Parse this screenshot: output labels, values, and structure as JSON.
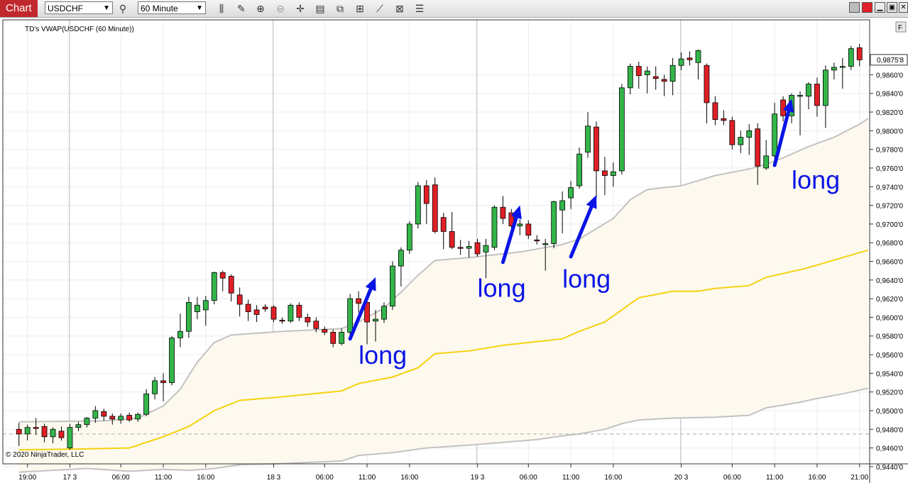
{
  "toolbar": {
    "tab_label": "Chart",
    "instrument": "USDCHF",
    "timeframe": "60 Minute"
  },
  "indicator_label": "TD's VWAP(USDCHF (60 Minute))",
  "copyright": "© 2020 NinjaTrader, LLC",
  "price_badge": "0,9875'8",
  "colors": {
    "up_candle": "#33b54a",
    "down_candle": "#e01f26",
    "vwap": "#f5d20e",
    "bands": "#c2c2c2",
    "band_fill": "#fdf9ef",
    "arrows": "#0a14e6"
  },
  "chart_data": {
    "type": "candlestick",
    "y_axis": {
      "min": 0.9435,
      "max": 0.9885,
      "ticks": [
        "0,9860'0",
        "0,9840'0",
        "0,9820'0",
        "0,9800'0",
        "0,9780'0",
        "0,9760'0",
        "0,9740'0",
        "0,9720'0",
        "0,9700'0",
        "0,9680'0",
        "0,9660'0",
        "0,9640'0",
        "0,9620'0",
        "0,9600'0",
        "0,9580'0",
        "0,9560'0",
        "0,9540'0",
        "0,9520'0",
        "0,9500'0",
        "0,9480'0",
        "0,9460'0",
        "0,9440'0"
      ],
      "tick_values": [
        0.986,
        0.984,
        0.982,
        0.98,
        0.978,
        0.976,
        0.974,
        0.972,
        0.97,
        0.968,
        0.966,
        0.964,
        0.962,
        0.96,
        0.958,
        0.956,
        0.954,
        0.952,
        0.95,
        0.948,
        0.946,
        0.944
      ]
    },
    "x_axis": {
      "ticks": [
        {
          "label": "19:00",
          "i": 1
        },
        {
          "label": "17 3",
          "i": 6
        },
        {
          "label": "06:00",
          "i": 12
        },
        {
          "label": "11:00",
          "i": 17
        },
        {
          "label": "16:00",
          "i": 22
        },
        {
          "label": "18 3",
          "i": 30
        },
        {
          "label": "06:00",
          "i": 36
        },
        {
          "label": "11:00",
          "i": 41
        },
        {
          "label": "16:00",
          "i": 46
        },
        {
          "label": "19 3",
          "i": 54
        },
        {
          "label": "06:00",
          "i": 60
        },
        {
          "label": "11:00",
          "i": 65
        },
        {
          "label": "16:00",
          "i": 70
        },
        {
          "label": "20 3",
          "i": 78
        },
        {
          "label": "06:00",
          "i": 84
        },
        {
          "label": "11:00",
          "i": 89
        },
        {
          "label": "16:00",
          "i": 94
        },
        {
          "label": "21:00",
          "i": 99
        }
      ],
      "day_separators": [
        6,
        30,
        54,
        78
      ]
    },
    "candles": [
      {
        "o": 0.948,
        "h": 0.9487,
        "l": 0.9462,
        "c": 0.9475
      },
      {
        "o": 0.9475,
        "h": 0.9485,
        "l": 0.9468,
        "c": 0.9482
      },
      {
        "o": 0.9482,
        "h": 0.9492,
        "l": 0.9474,
        "c": 0.9481
      },
      {
        "o": 0.9483,
        "h": 0.9486,
        "l": 0.9466,
        "c": 0.9472
      },
      {
        "o": 0.9472,
        "h": 0.9482,
        "l": 0.9465,
        "c": 0.948
      },
      {
        "o": 0.9478,
        "h": 0.9483,
        "l": 0.9468,
        "c": 0.9471
      },
      {
        "o": 0.946,
        "h": 0.9486,
        "l": 0.9458,
        "c": 0.9482
      },
      {
        "o": 0.9482,
        "h": 0.9488,
        "l": 0.9478,
        "c": 0.9485
      },
      {
        "o": 0.9485,
        "h": 0.9493,
        "l": 0.9482,
        "c": 0.9492
      },
      {
        "o": 0.9492,
        "h": 0.9505,
        "l": 0.9487,
        "c": 0.95
      },
      {
        "o": 0.9499,
        "h": 0.9502,
        "l": 0.9489,
        "c": 0.9494
      },
      {
        "o": 0.9494,
        "h": 0.9497,
        "l": 0.9485,
        "c": 0.9491
      },
      {
        "o": 0.949,
        "h": 0.9497,
        "l": 0.9486,
        "c": 0.9494
      },
      {
        "o": 0.9495,
        "h": 0.9498,
        "l": 0.9488,
        "c": 0.949
      },
      {
        "o": 0.9491,
        "h": 0.9498,
        "l": 0.9488,
        "c": 0.9496
      },
      {
        "o": 0.9496,
        "h": 0.9523,
        "l": 0.9494,
        "c": 0.9518
      },
      {
        "o": 0.9518,
        "h": 0.9536,
        "l": 0.9512,
        "c": 0.9532
      },
      {
        "o": 0.9532,
        "h": 0.954,
        "l": 0.951,
        "c": 0.953
      },
      {
        "o": 0.953,
        "h": 0.958,
        "l": 0.9527,
        "c": 0.9578
      },
      {
        "o": 0.9578,
        "h": 0.9604,
        "l": 0.9568,
        "c": 0.9585
      },
      {
        "o": 0.9585,
        "h": 0.9622,
        "l": 0.9578,
        "c": 0.9616
      },
      {
        "o": 0.9606,
        "h": 0.9622,
        "l": 0.9598,
        "c": 0.9613
      },
      {
        "o": 0.9608,
        "h": 0.9623,
        "l": 0.9591,
        "c": 0.9618
      },
      {
        "o": 0.9618,
        "h": 0.9649,
        "l": 0.9614,
        "c": 0.9648
      },
      {
        "o": 0.9648,
        "h": 0.965,
        "l": 0.9628,
        "c": 0.9642
      },
      {
        "o": 0.9644,
        "h": 0.9646,
        "l": 0.9617,
        "c": 0.9626
      },
      {
        "o": 0.9624,
        "h": 0.9632,
        "l": 0.9601,
        "c": 0.9614
      },
      {
        "o": 0.9614,
        "h": 0.9619,
        "l": 0.9596,
        "c": 0.9606
      },
      {
        "o": 0.9608,
        "h": 0.9613,
        "l": 0.9595,
        "c": 0.9603
      },
      {
        "o": 0.9611,
        "h": 0.9614,
        "l": 0.9606,
        "c": 0.9609
      },
      {
        "o": 0.9611,
        "h": 0.9613,
        "l": 0.9595,
        "c": 0.9598
      },
      {
        "o": 0.9597,
        "h": 0.96,
        "l": 0.9593,
        "c": 0.9596
      },
      {
        "o": 0.9596,
        "h": 0.9615,
        "l": 0.9594,
        "c": 0.9613
      },
      {
        "o": 0.9613,
        "h": 0.9616,
        "l": 0.9596,
        "c": 0.96
      },
      {
        "o": 0.96,
        "h": 0.9604,
        "l": 0.959,
        "c": 0.9595
      },
      {
        "o": 0.9596,
        "h": 0.96,
        "l": 0.9584,
        "c": 0.9588
      },
      {
        "o": 0.9587,
        "h": 0.959,
        "l": 0.9581,
        "c": 0.9584
      },
      {
        "o": 0.9584,
        "h": 0.9587,
        "l": 0.9568,
        "c": 0.9572
      },
      {
        "o": 0.9572,
        "h": 0.9588,
        "l": 0.957,
        "c": 0.9584
      },
      {
        "o": 0.9584,
        "h": 0.9625,
        "l": 0.958,
        "c": 0.962
      },
      {
        "o": 0.962,
        "h": 0.9628,
        "l": 0.9605,
        "c": 0.9615
      },
      {
        "o": 0.9616,
        "h": 0.962,
        "l": 0.9571,
        "c": 0.9595
      },
      {
        "o": 0.9596,
        "h": 0.9608,
        "l": 0.9574,
        "c": 0.9598
      },
      {
        "o": 0.9598,
        "h": 0.9616,
        "l": 0.9594,
        "c": 0.9612
      },
      {
        "o": 0.9612,
        "h": 0.966,
        "l": 0.9608,
        "c": 0.9655
      },
      {
        "o": 0.9655,
        "h": 0.9675,
        "l": 0.9633,
        "c": 0.9672
      },
      {
        "o": 0.9672,
        "h": 0.9703,
        "l": 0.9668,
        "c": 0.97
      },
      {
        "o": 0.97,
        "h": 0.9745,
        "l": 0.9695,
        "c": 0.9741
      },
      {
        "o": 0.9741,
        "h": 0.9747,
        "l": 0.97,
        "c": 0.9722
      },
      {
        "o": 0.9742,
        "h": 0.975,
        "l": 0.969,
        "c": 0.9692
      },
      {
        "o": 0.9707,
        "h": 0.9712,
        "l": 0.9673,
        "c": 0.9692
      },
      {
        "o": 0.9692,
        "h": 0.9713,
        "l": 0.9673,
        "c": 0.9675
      },
      {
        "o": 0.9675,
        "h": 0.9683,
        "l": 0.9667,
        "c": 0.9674
      },
      {
        "o": 0.9674,
        "h": 0.9682,
        "l": 0.9664,
        "c": 0.9676
      },
      {
        "o": 0.968,
        "h": 0.9684,
        "l": 0.9665,
        "c": 0.9668
      },
      {
        "o": 0.967,
        "h": 0.9684,
        "l": 0.9642,
        "c": 0.9677
      },
      {
        "o": 0.9675,
        "h": 0.972,
        "l": 0.9672,
        "c": 0.9718
      },
      {
        "o": 0.9718,
        "h": 0.973,
        "l": 0.97,
        "c": 0.9706
      },
      {
        "o": 0.9712,
        "h": 0.9716,
        "l": 0.9694,
        "c": 0.9698
      },
      {
        "o": 0.9698,
        "h": 0.9705,
        "l": 0.9688,
        "c": 0.97
      },
      {
        "o": 0.97,
        "h": 0.9704,
        "l": 0.9684,
        "c": 0.9688
      },
      {
        "o": 0.9683,
        "h": 0.9688,
        "l": 0.9678,
        "c": 0.9682
      },
      {
        "o": 0.9679,
        "h": 0.9684,
        "l": 0.965,
        "c": 0.9679
      },
      {
        "o": 0.9679,
        "h": 0.9725,
        "l": 0.9674,
        "c": 0.9724
      },
      {
        "o": 0.9715,
        "h": 0.9735,
        "l": 0.969,
        "c": 0.9725
      },
      {
        "o": 0.9728,
        "h": 0.9746,
        "l": 0.9716,
        "c": 0.9739
      },
      {
        "o": 0.9741,
        "h": 0.9782,
        "l": 0.9738,
        "c": 0.9775
      },
      {
        "o": 0.9777,
        "h": 0.982,
        "l": 0.9771,
        "c": 0.9805
      },
      {
        "o": 0.9804,
        "h": 0.981,
        "l": 0.9728,
        "c": 0.9757
      },
      {
        "o": 0.9757,
        "h": 0.9772,
        "l": 0.9731,
        "c": 0.9752
      },
      {
        "o": 0.9752,
        "h": 0.9766,
        "l": 0.974,
        "c": 0.9756
      },
      {
        "o": 0.9757,
        "h": 0.985,
        "l": 0.9753,
        "c": 0.9846
      },
      {
        "o": 0.9846,
        "h": 0.9872,
        "l": 0.9839,
        "c": 0.9869
      },
      {
        "o": 0.9869,
        "h": 0.9874,
        "l": 0.9845,
        "c": 0.9859
      },
      {
        "o": 0.986,
        "h": 0.9869,
        "l": 0.984,
        "c": 0.9864
      },
      {
        "o": 0.9858,
        "h": 0.9869,
        "l": 0.9844,
        "c": 0.9856
      },
      {
        "o": 0.9855,
        "h": 0.986,
        "l": 0.9837,
        "c": 0.9853
      },
      {
        "o": 0.9853,
        "h": 0.9878,
        "l": 0.9838,
        "c": 0.987
      },
      {
        "o": 0.987,
        "h": 0.9884,
        "l": 0.9865,
        "c": 0.9877
      },
      {
        "o": 0.9878,
        "h": 0.9885,
        "l": 0.987,
        "c": 0.9876
      },
      {
        "o": 0.9873,
        "h": 0.9887,
        "l": 0.9855,
        "c": 0.9886
      },
      {
        "o": 0.987,
        "h": 0.9872,
        "l": 0.9808,
        "c": 0.983
      },
      {
        "o": 0.983,
        "h": 0.9837,
        "l": 0.9806,
        "c": 0.9812
      },
      {
        "o": 0.9813,
        "h": 0.9822,
        "l": 0.9806,
        "c": 0.9811
      },
      {
        "o": 0.9811,
        "h": 0.9815,
        "l": 0.978,
        "c": 0.9785
      },
      {
        "o": 0.9785,
        "h": 0.98,
        "l": 0.9776,
        "c": 0.9793
      },
      {
        "o": 0.9793,
        "h": 0.9807,
        "l": 0.9774,
        "c": 0.98
      },
      {
        "o": 0.9802,
        "h": 0.9808,
        "l": 0.9742,
        "c": 0.9762
      },
      {
        "o": 0.976,
        "h": 0.979,
        "l": 0.9758,
        "c": 0.9773
      },
      {
        "o": 0.9773,
        "h": 0.983,
        "l": 0.9767,
        "c": 0.9818
      },
      {
        "o": 0.9833,
        "h": 0.9837,
        "l": 0.981,
        "c": 0.9816
      },
      {
        "o": 0.9816,
        "h": 0.984,
        "l": 0.9808,
        "c": 0.9838
      },
      {
        "o": 0.9838,
        "h": 0.9842,
        "l": 0.9795,
        "c": 0.9838
      },
      {
        "o": 0.9837,
        "h": 0.9852,
        "l": 0.9823,
        "c": 0.985
      },
      {
        "o": 0.985,
        "h": 0.9857,
        "l": 0.9815,
        "c": 0.9827
      },
      {
        "o": 0.9827,
        "h": 0.987,
        "l": 0.9803,
        "c": 0.9865
      },
      {
        "o": 0.9865,
        "h": 0.9873,
        "l": 0.9855,
        "c": 0.9868
      },
      {
        "o": 0.9868,
        "h": 0.9878,
        "l": 0.9845,
        "c": 0.9869
      },
      {
        "o": 0.9869,
        "h": 0.9891,
        "l": 0.9865,
        "c": 0.9888
      },
      {
        "o": 0.9889,
        "h": 0.9893,
        "l": 0.9869,
        "c": 0.9876
      }
    ],
    "vwap": [
      [
        0,
        0.9458
      ],
      [
        8,
        0.9459
      ],
      [
        13,
        0.946
      ],
      [
        17,
        0.9472
      ],
      [
        20,
        0.9483
      ],
      [
        23,
        0.95
      ],
      [
        26,
        0.9511
      ],
      [
        30,
        0.9514
      ],
      [
        38,
        0.9521
      ],
      [
        40,
        0.9529
      ],
      [
        44,
        0.9536
      ],
      [
        47,
        0.9546
      ],
      [
        49,
        0.9561
      ],
      [
        53,
        0.9564
      ],
      [
        57,
        0.957
      ],
      [
        61,
        0.9574
      ],
      [
        64,
        0.9577
      ],
      [
        66,
        0.9585
      ],
      [
        69,
        0.9595
      ],
      [
        71,
        0.9608
      ],
      [
        73,
        0.9621
      ],
      [
        77,
        0.9628
      ],
      [
        80,
        0.9628
      ],
      [
        82,
        0.9631
      ],
      [
        86,
        0.9634
      ],
      [
        88,
        0.9643
      ],
      [
        92,
        0.9651
      ],
      [
        94,
        0.9656
      ],
      [
        97,
        0.9664
      ],
      [
        100,
        0.9672
      ]
    ],
    "upper_band": [
      [
        0,
        0.9488
      ],
      [
        10,
        0.9489
      ],
      [
        14,
        0.9492
      ],
      [
        17,
        0.9505
      ],
      [
        19,
        0.9523
      ],
      [
        21,
        0.9552
      ],
      [
        23,
        0.9573
      ],
      [
        25,
        0.9581
      ],
      [
        28,
        0.9583
      ],
      [
        31,
        0.9585
      ],
      [
        38,
        0.9588
      ],
      [
        40,
        0.9595
      ],
      [
        43,
        0.961
      ],
      [
        45,
        0.9627
      ],
      [
        47,
        0.9645
      ],
      [
        49,
        0.9661
      ],
      [
        53,
        0.9664
      ],
      [
        56,
        0.9667
      ],
      [
        59,
        0.967
      ],
      [
        64,
        0.9678
      ],
      [
        66,
        0.9684
      ],
      [
        68,
        0.9695
      ],
      [
        70,
        0.9706
      ],
      [
        72,
        0.9726
      ],
      [
        74,
        0.9737
      ],
      [
        78,
        0.9741
      ],
      [
        82,
        0.9752
      ],
      [
        86,
        0.9759
      ],
      [
        88,
        0.9764
      ],
      [
        90,
        0.9771
      ],
      [
        93,
        0.9783
      ],
      [
        96,
        0.9793
      ],
      [
        99,
        0.9807
      ],
      [
        100,
        0.9813
      ]
    ],
    "lower_band": [
      [
        0,
        0.9434
      ],
      [
        8,
        0.9438
      ],
      [
        13,
        0.9435
      ],
      [
        17,
        0.9437
      ],
      [
        20,
        0.9436
      ],
      [
        23,
        0.9438
      ],
      [
        26,
        0.9442
      ],
      [
        30,
        0.9443
      ],
      [
        38,
        0.9446
      ],
      [
        40,
        0.9452
      ],
      [
        44,
        0.9455
      ],
      [
        48,
        0.946
      ],
      [
        53,
        0.9463
      ],
      [
        57,
        0.9466
      ],
      [
        61,
        0.9469
      ],
      [
        64,
        0.9473
      ],
      [
        66,
        0.9475
      ],
      [
        69,
        0.948
      ],
      [
        71,
        0.9486
      ],
      [
        73,
        0.949
      ],
      [
        77,
        0.9492
      ],
      [
        82,
        0.9493
      ],
      [
        86,
        0.9495
      ],
      [
        88,
        0.9503
      ],
      [
        92,
        0.9509
      ],
      [
        94,
        0.9513
      ],
      [
        97,
        0.9518
      ],
      [
        100,
        0.9524
      ]
    ],
    "reference_line": 0.9475,
    "annotations": [
      {
        "text": "long",
        "x": 40,
        "y": 0.955,
        "arrow_from": [
          39,
          0.9577
        ],
        "arrow_to": [
          42,
          0.9643
        ]
      },
      {
        "text": "long",
        "x": 54,
        "y": 0.9622,
        "arrow_from": [
          57,
          0.9659
        ],
        "arrow_to": [
          59,
          0.972
        ]
      },
      {
        "text": "long",
        "x": 64,
        "y": 0.9632,
        "arrow_from": [
          65,
          0.9665
        ],
        "arrow_to": [
          68,
          0.9731
        ]
      },
      {
        "text": "long",
        "x": 91,
        "y": 0.9738,
        "arrow_from": [
          89,
          0.9763
        ],
        "arrow_to": [
          91,
          0.9834
        ]
      }
    ]
  }
}
